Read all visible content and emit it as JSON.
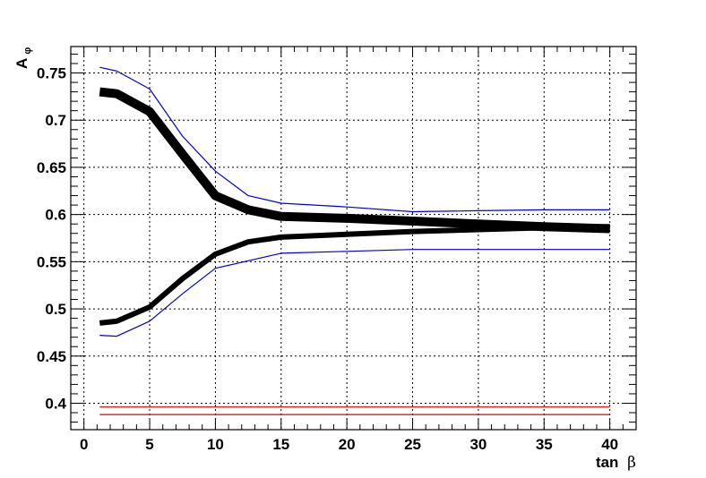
{
  "chart_data": {
    "type": "line",
    "xlabel_main": "tan",
    "xlabel_symbol": "β",
    "ylabel_main": "A",
    "ylabel_sub": "φ",
    "xlim": [
      -1,
      42
    ],
    "ylim": [
      0.372,
      0.778
    ],
    "x_ticks": [
      0,
      5,
      10,
      15,
      20,
      25,
      30,
      35,
      40
    ],
    "x_tick_labels": [
      "0",
      "5",
      "10",
      "15",
      "20",
      "25",
      "30",
      "35",
      "40"
    ],
    "y_ticks": [
      0.4,
      0.45,
      0.5,
      0.55,
      0.6,
      0.65,
      0.7,
      0.75
    ],
    "y_tick_labels": [
      "0.4",
      "0.45",
      "0.5",
      "0.55",
      "0.6",
      "0.65",
      "0.7",
      "0.75"
    ],
    "grid": true,
    "legend": "none",
    "series": [
      {
        "key": "upper-band",
        "color": "#000000",
        "style": "thick",
        "x": [
          1.2,
          2.5,
          5,
          7.5,
          10,
          12.5,
          15,
          20,
          25,
          30,
          35,
          40
        ],
        "y": [
          0.73,
          0.728,
          0.709,
          0.664,
          0.62,
          0.605,
          0.598,
          0.596,
          0.593,
          0.59,
          0.587,
          0.585
        ]
      },
      {
        "key": "lower-band",
        "color": "#000000",
        "style": "medium",
        "x": [
          1.2,
          2.5,
          5,
          7.5,
          10,
          12.5,
          15,
          20,
          25,
          30,
          35,
          40
        ],
        "y": [
          0.485,
          0.487,
          0.502,
          0.532,
          0.558,
          0.571,
          0.576,
          0.579,
          0.582,
          0.584,
          0.586,
          0.587
        ]
      },
      {
        "key": "upper-blue",
        "color": "#0000cc",
        "style": "thin",
        "x": [
          1.2,
          2.5,
          5,
          7.5,
          10,
          12.5,
          15,
          20,
          25,
          30,
          35,
          40
        ],
        "y": [
          0.756,
          0.752,
          0.733,
          0.683,
          0.646,
          0.62,
          0.612,
          0.608,
          0.603,
          0.604,
          0.605,
          0.605
        ]
      },
      {
        "key": "lower-blue",
        "color": "#0000cc",
        "style": "thin",
        "x": [
          1.2,
          2.5,
          5,
          7.5,
          10,
          12.5,
          15,
          20,
          25,
          30,
          35,
          40
        ],
        "y": [
          0.472,
          0.471,
          0.487,
          0.516,
          0.543,
          0.551,
          0.559,
          0.561,
          0.563,
          0.563,
          0.563,
          0.563
        ]
      },
      {
        "key": "red-upper",
        "color": "#dd0000",
        "style": "hair",
        "x": [
          1.2,
          40
        ],
        "y": [
          0.396,
          0.396
        ]
      },
      {
        "key": "red-lower",
        "color": "#dd0000",
        "style": "hair",
        "x": [
          1.2,
          40
        ],
        "y": [
          0.388,
          0.388
        ]
      }
    ]
  }
}
